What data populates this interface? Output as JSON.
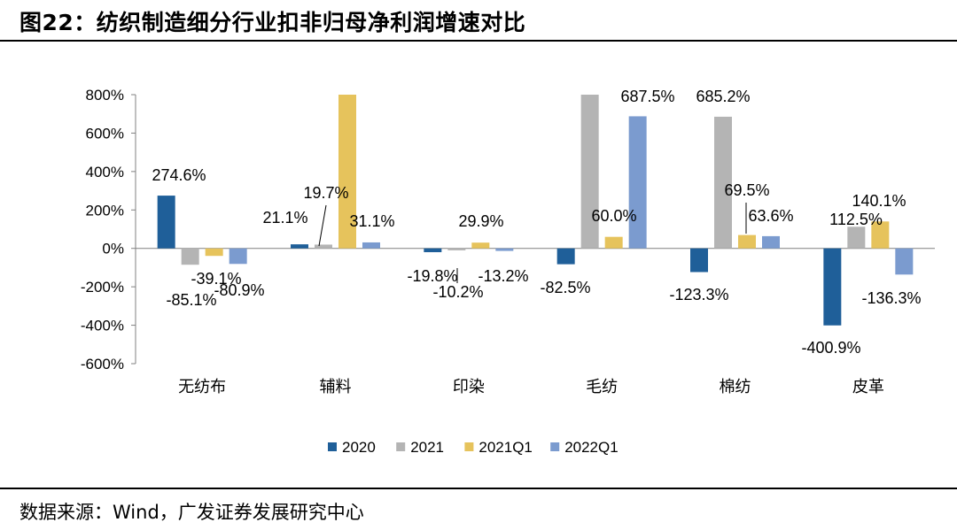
{
  "header": {
    "title": "图22：纺织制造细分行业扣非归母净利润增速对比"
  },
  "footer": {
    "source": "数据来源：Wind，广发证券发展研究中心"
  },
  "colors": {
    "2020": "#1f5f99",
    "2021": "#b4b4b4",
    "2021Q1": "#e6c35c",
    "2022Q1": "#7b9bcf"
  },
  "chart_data": {
    "type": "bar",
    "title": "",
    "xlabel": "",
    "ylabel": "",
    "ylim": [
      -600,
      800
    ],
    "yticks": [
      "800%",
      "600%",
      "400%",
      "200%",
      "0%",
      "-200%",
      "-400%",
      "-600%"
    ],
    "ytick_values": [
      800,
      600,
      400,
      200,
      0,
      -200,
      -400,
      -600
    ],
    "categories": [
      "无纺布",
      "辅料",
      "印染",
      "毛纺",
      "棉纺",
      "皮革"
    ],
    "legend_position": "bottom",
    "grid": false,
    "series": [
      {
        "name": "2020",
        "values": [
          274.6,
          21.1,
          -19.8,
          -82.5,
          -123.3,
          -400.9
        ],
        "labels": [
          "274.6%",
          "21.1%",
          "-19.8%",
          "-82.5%",
          "-123.3%",
          "-400.9%"
        ]
      },
      {
        "name": "2021",
        "values": [
          -85.1,
          19.7,
          -10.2,
          800,
          685.2,
          112.5
        ],
        "labels": [
          "-85.1%",
          "19.7%",
          "-10.2%",
          "",
          "685.2%",
          "112.5%"
        ]
      },
      {
        "name": "2021Q1",
        "values": [
          -39.1,
          800,
          29.9,
          60.0,
          69.5,
          140.1
        ],
        "labels": [
          "-39.1%",
          "",
          "29.9%",
          "60.0%",
          "69.5%",
          "140.1%"
        ]
      },
      {
        "name": "2022Q1",
        "values": [
          -80.9,
          31.1,
          -13.2,
          687.5,
          63.6,
          -136.3
        ],
        "labels": [
          "-80.9%",
          "31.1%",
          "-13.2%",
          "687.5%",
          "63.6%",
          "-136.3%"
        ]
      }
    ]
  }
}
